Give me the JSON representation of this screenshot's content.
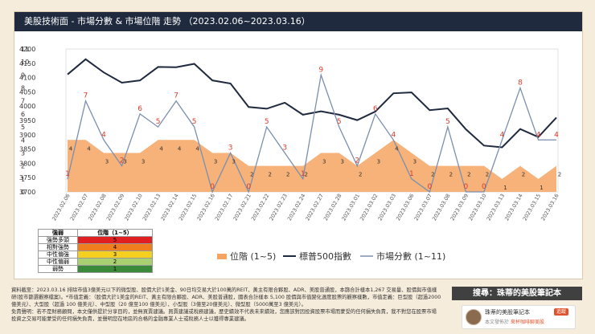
{
  "header": {
    "title": "美股技術面 - 市場分數 & 市場位階 走勢 （2023.02.06~2023.03.16）"
  },
  "colors": {
    "area": "#f4a461",
    "index_line": "#1f2a3e",
    "score_line": "#7a8fb0",
    "score_label": "#d93b2b",
    "level_label": "#333333"
  },
  "chart_data": {
    "type": "area+line",
    "title": "美股技術面 - 市場分數 & 市場位階 走勢 （2023.02.06~2023.03.16）",
    "categories": [
      "2023.02.06",
      "2023.02.07",
      "2023.02.08",
      "2023.02.09",
      "2023.02.10",
      "2023.02.13",
      "2023.02.14",
      "2023.02.15",
      "2023.02.16",
      "2023.02.17",
      "2023.02.21",
      "2023.02.22",
      "2023.02.23",
      "2023.02.24",
      "2023.02.27",
      "2023.02.28",
      "2023.03.01",
      "2023.03.02",
      "2023.03.03",
      "2023.03.06",
      "2023.03.07",
      "2023.03.08",
      "2023.03.09",
      "2023.03.10",
      "2023.03.13",
      "2023.03.14",
      "2023.03.15",
      "2023.03.16"
    ],
    "left_axis": {
      "min": 3700,
      "max": 4200,
      "ticks": [
        "3700",
        "3750",
        "3800",
        "3850",
        "3900",
        "3950",
        "4000",
        "4050",
        "4100",
        "4150",
        "4200"
      ]
    },
    "right_axis": {
      "min": 0,
      "max": 11,
      "ticks": [
        "0",
        "1",
        "2",
        "3",
        "4",
        "5",
        "6",
        "7",
        "8",
        "9",
        "10",
        "11"
      ]
    },
    "series": [
      {
        "name": "位階 (1~5)",
        "type": "area",
        "axis": "right",
        "values": [
          4,
          4,
          3,
          3,
          3,
          4,
          4,
          4,
          3,
          3,
          2,
          2,
          2,
          2,
          3,
          3,
          2,
          3,
          4,
          3,
          2,
          2,
          2,
          2,
          1,
          2,
          1,
          2
        ]
      },
      {
        "name": "標普500指數",
        "type": "line",
        "axis": "left",
        "values": [
          4111,
          4164,
          4118,
          4082,
          4090,
          4137,
          4136,
          4148,
          4090,
          4079,
          3997,
          3991,
          4012,
          3970,
          3982,
          3970,
          3951,
          3981,
          4045,
          4048,
          3986,
          3992,
          3919,
          3862,
          3856,
          3920,
          3892,
          3960
        ]
      },
      {
        "name": "市場分數 (1~11)",
        "type": "line",
        "axis": "right",
        "values": [
          1,
          7,
          4,
          2,
          6,
          5,
          7,
          5,
          0,
          3,
          0,
          5,
          3,
          1,
          9,
          5,
          2,
          6,
          4,
          1,
          0,
          5,
          0,
          0,
          4,
          8,
          4,
          4
        ]
      }
    ],
    "legend": [
      "位階 (1~5)",
      "標普500指數",
      "市場分數 (1~11)"
    ],
    "level_table": {
      "headers": [
        "強弱",
        "位階（1~5）"
      ],
      "rows": [
        {
          "label": "強勢多頭",
          "value": "5",
          "color": "#e02020"
        },
        {
          "label": "相對強勢",
          "value": "4",
          "color": "#f07d1e"
        },
        {
          "label": "中性偏強",
          "value": "3",
          "color": "#f5d020"
        },
        {
          "label": "中性偏弱",
          "value": "2",
          "color": "#a8d070"
        },
        {
          "label": "弱勢",
          "value": "1",
          "color": "#3a8a3a"
        }
      ]
    }
  },
  "notes": {
    "text": "資料截至：2023.03.16 排除市值3億美元以下的微型股、股價大於1美金、90日均交易大於100萬的REIT、黃主有限合夥股、ADR、美股普通股，本篩合計樣本1,267 交易量、股價與市值樣研(股市篩選觀察檔案)。*市值定義：（股價大於1美金的REIT、黃主有限合夥股、ADR、美股普通股，國表合計樣本 5,100 股價與市值變化週度股票的觀察樣數，市值定義：巨型股（超過2000億美元）、大型股（超過 100 億美元）、中型股（20 億至100 億美元）、小型股（3億至20億美元）、微型股（5000萬至3 億美元）。",
    "disclaimer": "免責聲明：若不是財務顧問，本文僅供提於分享目的，並無買賣建議。買賣建議或稅務建議，歷史績效不代表未來績效，您應該對因投資股票市場而蒙受的任何損失負責，我不對您在股票市場投資之交易可能蒙受的任何損失負責，並聲明您在地區的合格的金融專業人士或稅務人士以獲得專業建議。"
  },
  "promo": {
    "title": "搜尋：珠蒂的美股筆記本",
    "name": "珠蒂的美股筆記本",
    "follow": "追蹤",
    "sub_prefix": "本文發佈於",
    "sub_accent": "來杯咖啡聊美股"
  }
}
